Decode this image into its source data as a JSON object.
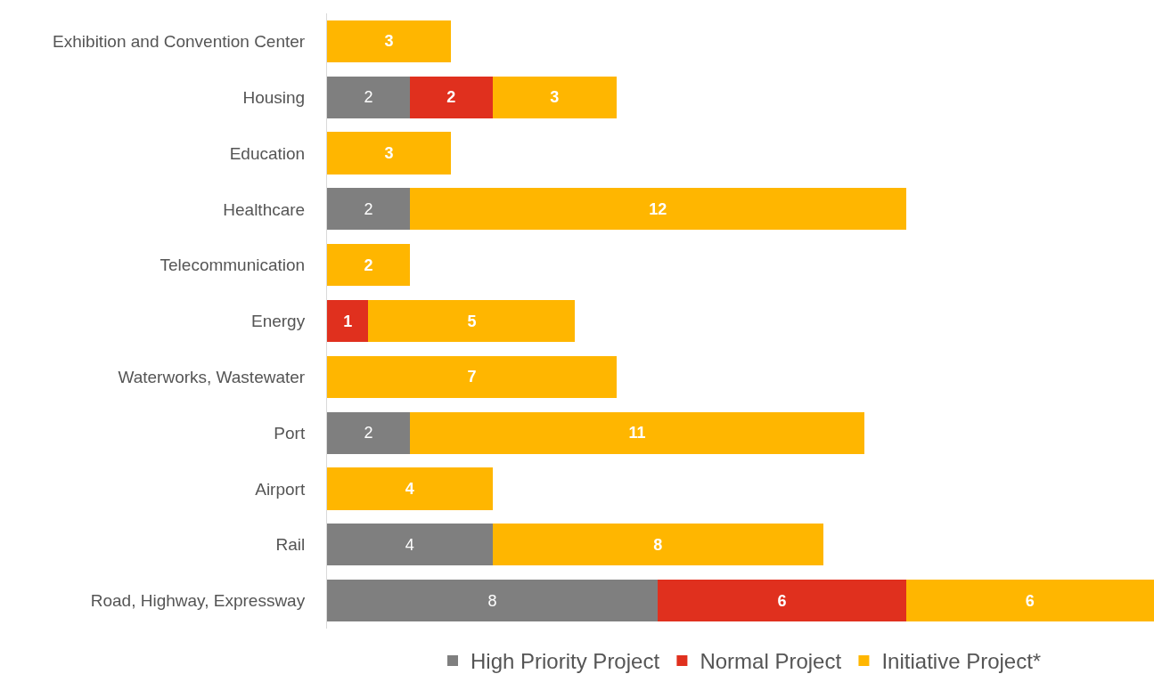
{
  "chart_data": {
    "type": "bar",
    "orientation": "horizontal",
    "stacked": true,
    "data_labels": true,
    "legend": "bottom",
    "categories": [
      "Exhibition and Convention Center",
      "Housing",
      "Education",
      "Healthcare",
      "Telecommunication",
      "Energy",
      "Waterworks, Wastewater",
      "Port",
      "Airport",
      "Rail",
      "Road, Highway, Expressway"
    ],
    "series": [
      {
        "name": "High Priority Project",
        "color": "#7f7f7f",
        "values": [
          null,
          2,
          null,
          2,
          null,
          null,
          null,
          2,
          null,
          4,
          8
        ]
      },
      {
        "name": "Normal Project",
        "color": "#e0301e",
        "values": [
          null,
          2,
          null,
          null,
          null,
          1,
          null,
          null,
          null,
          null,
          6
        ]
      },
      {
        "name": "Initiative Project*",
        "color": "#ffb600",
        "values": [
          3,
          3,
          3,
          12,
          2,
          5,
          7,
          11,
          4,
          8,
          6
        ]
      }
    ]
  }
}
